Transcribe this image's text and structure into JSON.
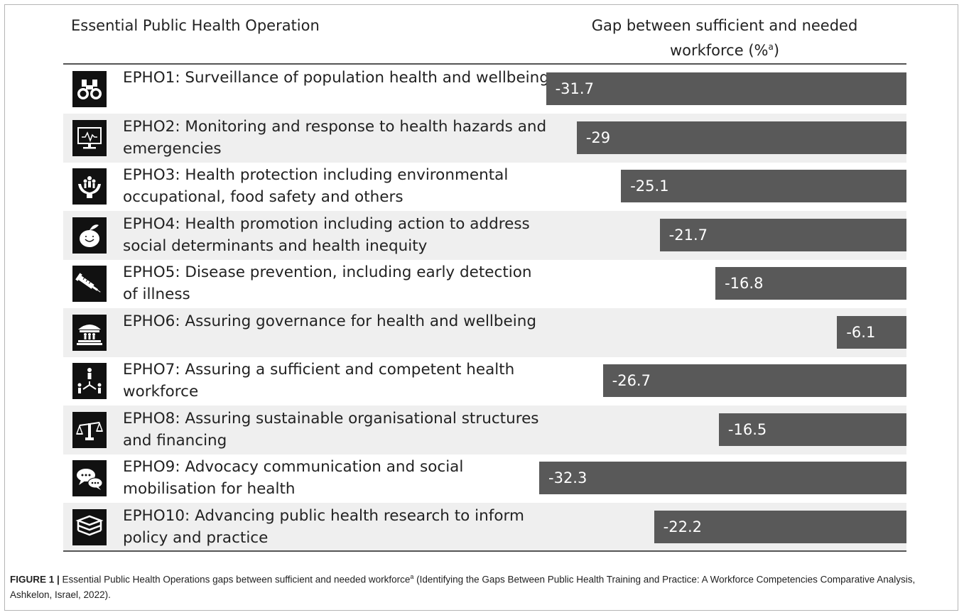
{
  "header": {
    "left": "Essential Public Health Operation",
    "right_line1": "Gap between sufficient and needed",
    "right_line2": "workforce (%",
    "right_sup": "a",
    "right_close": ")"
  },
  "caption": {
    "label": "FIGURE 1 |",
    "text": " Essential Public Health Operations gaps between sufficient and needed workforce",
    "sup": "a",
    "text2": " (Identifying the Gaps Between Public Health Training and Practice: A Workforce Competencies Comparative Analysis, Ashkelon, Israel, 2022)."
  },
  "chart_data": {
    "type": "bar",
    "orientation": "horizontal",
    "categories": [
      "EPHO1: Surveillance of population health and wellbeing",
      "EPHO2: Monitoring and response to health hazards and emergencies",
      "EPHO3: Health protection including environmental occupational, food safety and others",
      "EPHO4: Health promotion including action to address social determinants and health inequity",
      "EPHO5: Disease prevention, including early detection of illness",
      "EPHO6: Assuring governance for health and wellbeing",
      "EPHO7: Assuring a sufficient and competent health workforce",
      "EPHO8: Assuring sustainable organisational structures and financing",
      "EPHO9: Advocacy communication and social mobilisation for health",
      "EPHO10: Advancing public health research to inform policy and practice"
    ],
    "values": [
      -31.7,
      -29,
      -25.1,
      -21.7,
      -16.8,
      -6.1,
      -26.7,
      -16.5,
      -32.3,
      -22.2
    ],
    "data_labels": [
      "-31.7",
      "-29",
      "-25.1",
      "-21.7",
      "-16.8",
      "-6.1",
      "-26.7",
      "-16.5",
      "-32.3",
      "-22.2"
    ],
    "icons": [
      "binoculars-icon",
      "monitor-icon",
      "hands-people-icon",
      "apple-icon",
      "syringe-icon",
      "government-building-icon",
      "workforce-people-icon",
      "scales-icon",
      "speech-bubbles-icon",
      "books-icon"
    ],
    "bar_color": "#595959",
    "row_shade_color": "#efefef"
  }
}
